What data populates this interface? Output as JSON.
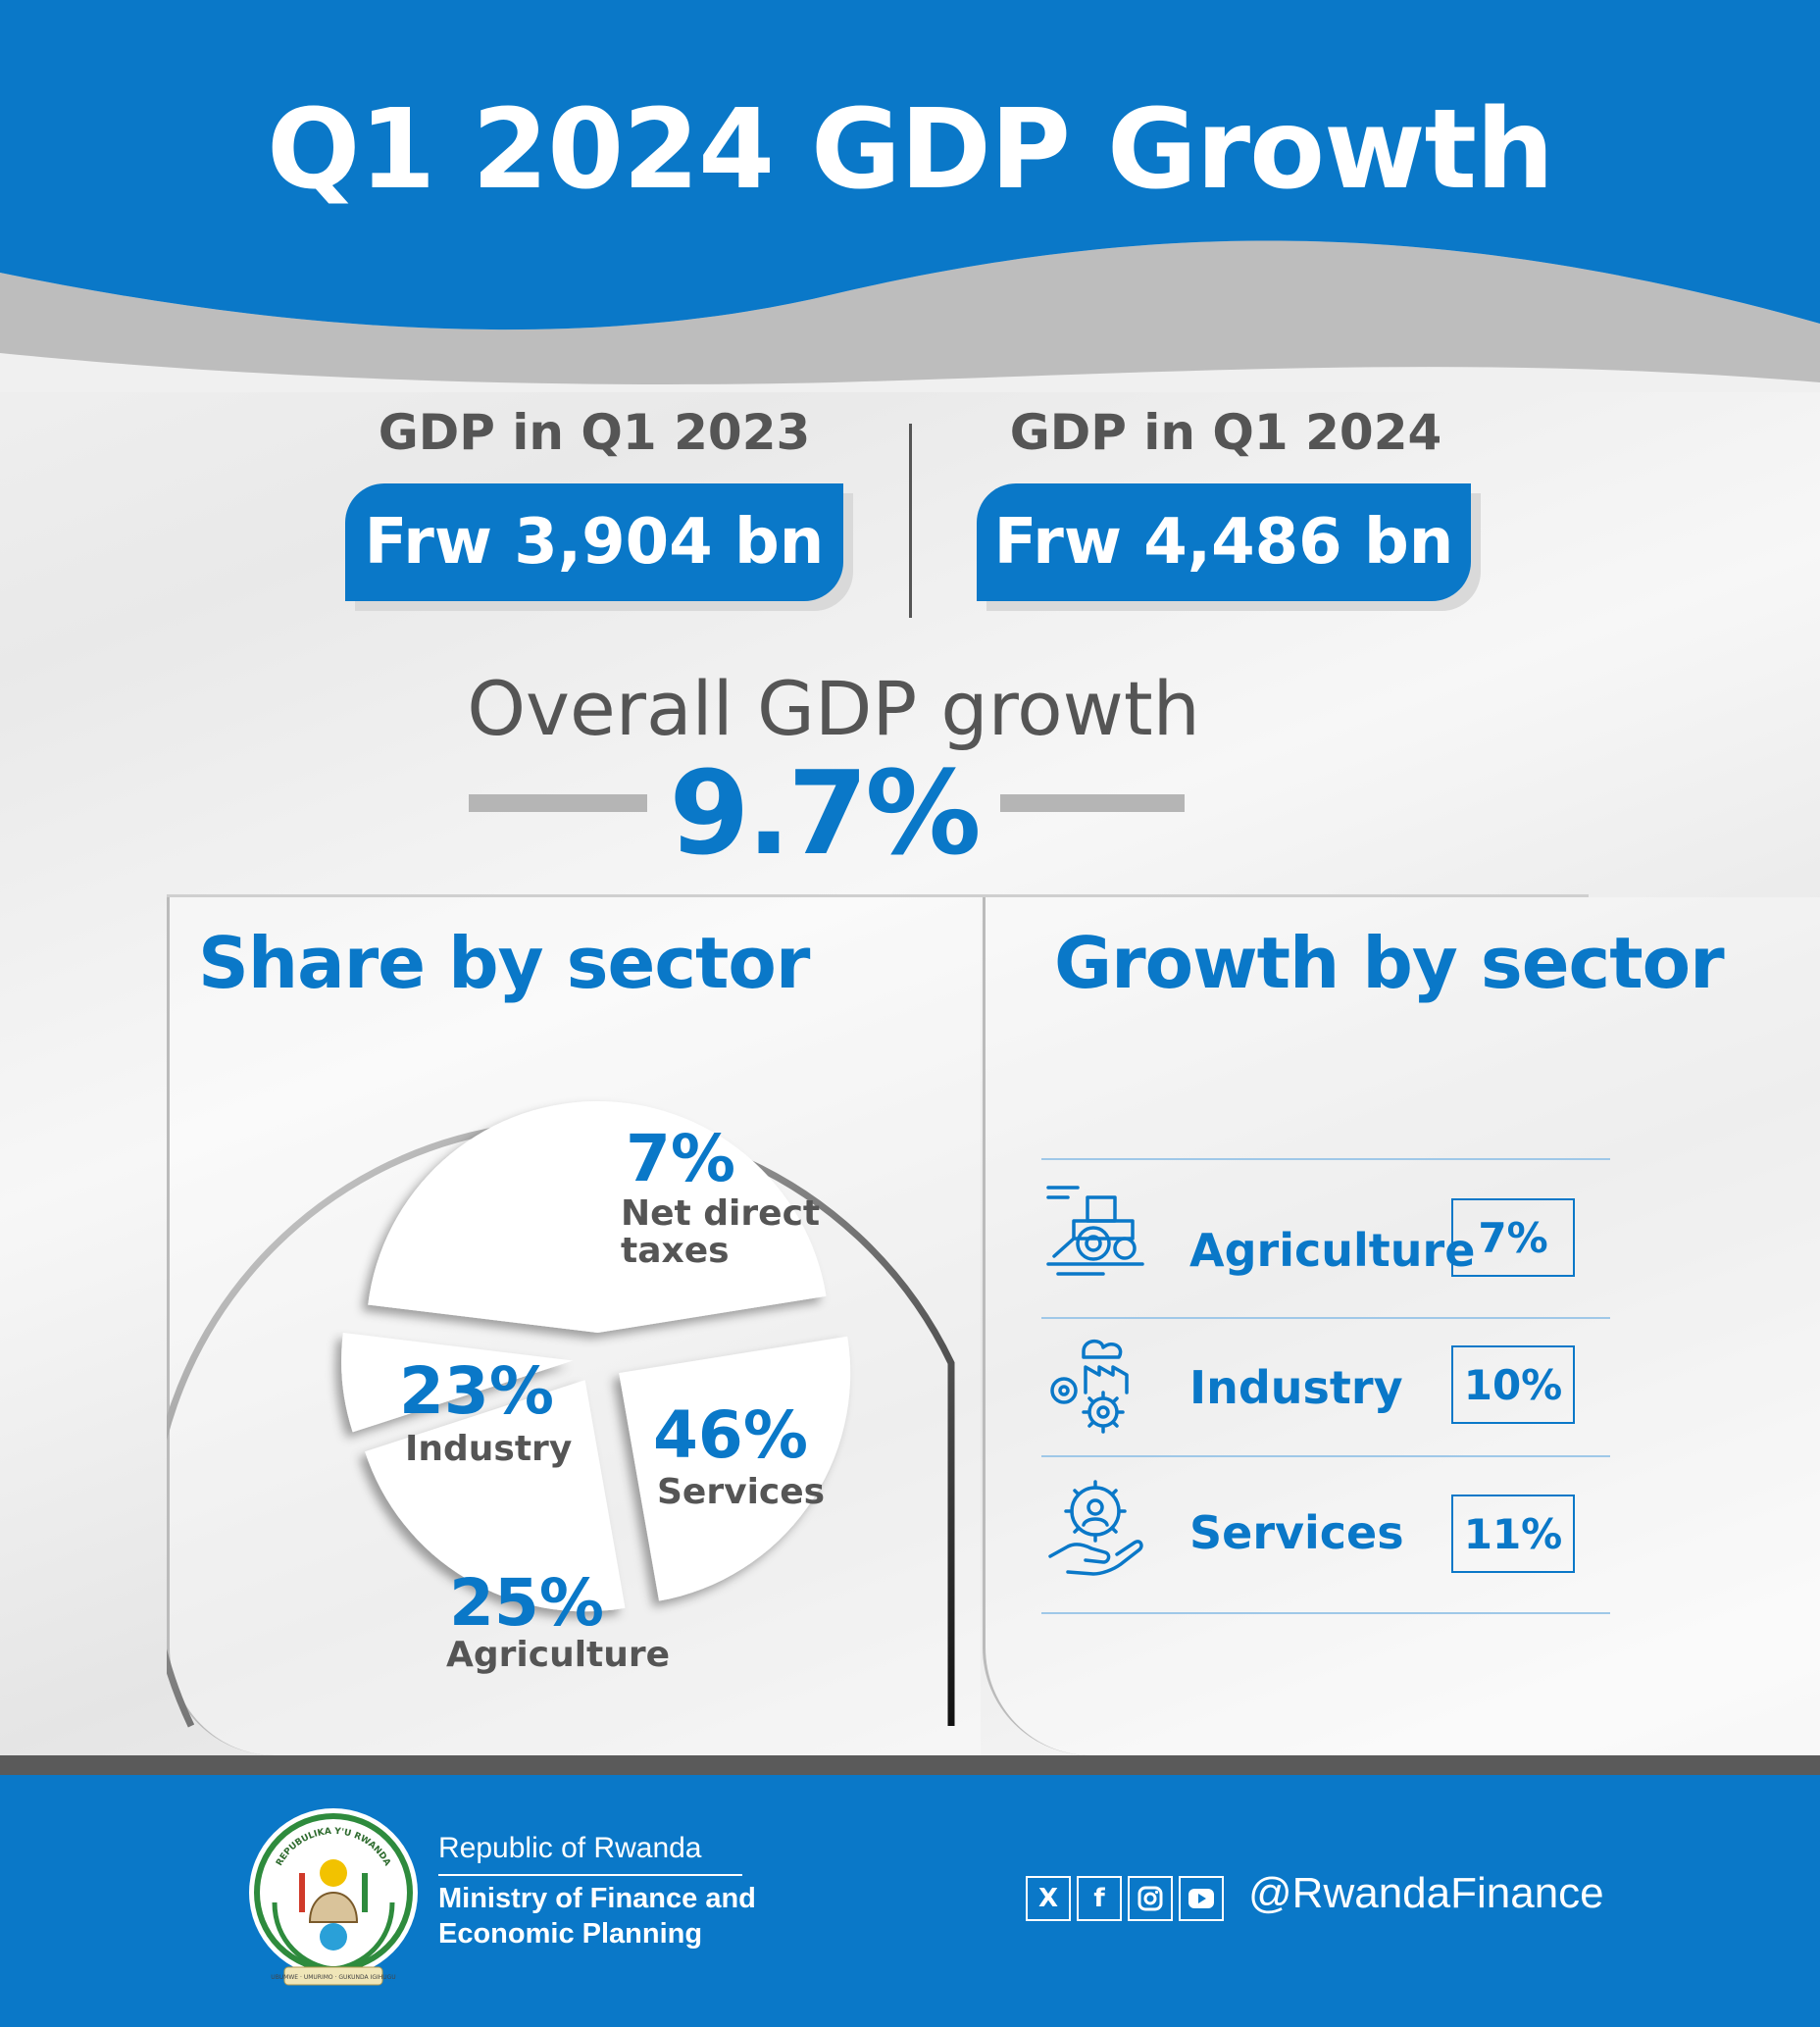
{
  "header": {
    "title": "Q1 2024 GDP Growth"
  },
  "gdp": {
    "q1_2023_label": "GDP in Q1 2023",
    "q1_2023_value": "Frw 3,904 bn",
    "q1_2024_label": "GDP in Q1 2024",
    "q1_2024_value": "Frw 4,486 bn"
  },
  "overall": {
    "label": "Overall GDP growth",
    "value": "9.7%"
  },
  "share": {
    "title": "Share by sector",
    "slices": [
      {
        "pct": "7%",
        "name_line1": "Net direct",
        "name_line2": "taxes",
        "value": 7
      },
      {
        "pct": "46%",
        "name": "Services",
        "value": 46
      },
      {
        "pct": "25%",
        "name": "Agriculture",
        "value": 25
      },
      {
        "pct": "23%",
        "name": "Industry",
        "value": 23
      }
    ]
  },
  "growth": {
    "title": "Growth by sector",
    "rows": [
      {
        "name": "Agriculture",
        "value": "7%",
        "icon": "tractor-icon"
      },
      {
        "name": "Industry",
        "value": "10%",
        "icon": "factory-gears-icon"
      },
      {
        "name": "Services",
        "value": "11%",
        "icon": "gear-hand-icon"
      }
    ]
  },
  "footer": {
    "country": "Republic of Rwanda",
    "ministry_line1": "Ministry of Finance and",
    "ministry_line2": "Economic Planning",
    "handle": "@RwandaFinance",
    "social_icons": [
      "x-icon",
      "facebook-icon",
      "instagram-icon",
      "youtube-icon"
    ],
    "emblem_top_text": "REPUBULIKA Y'U RWANDA",
    "emblem_bottom_text": "UBUMWE · UMURIMO · GUKUNDA IGIHUGU"
  },
  "colors": {
    "brand_blue": "#0a78c8",
    "text_gray": "#555555",
    "band_gray": "#bfbfbf"
  }
}
